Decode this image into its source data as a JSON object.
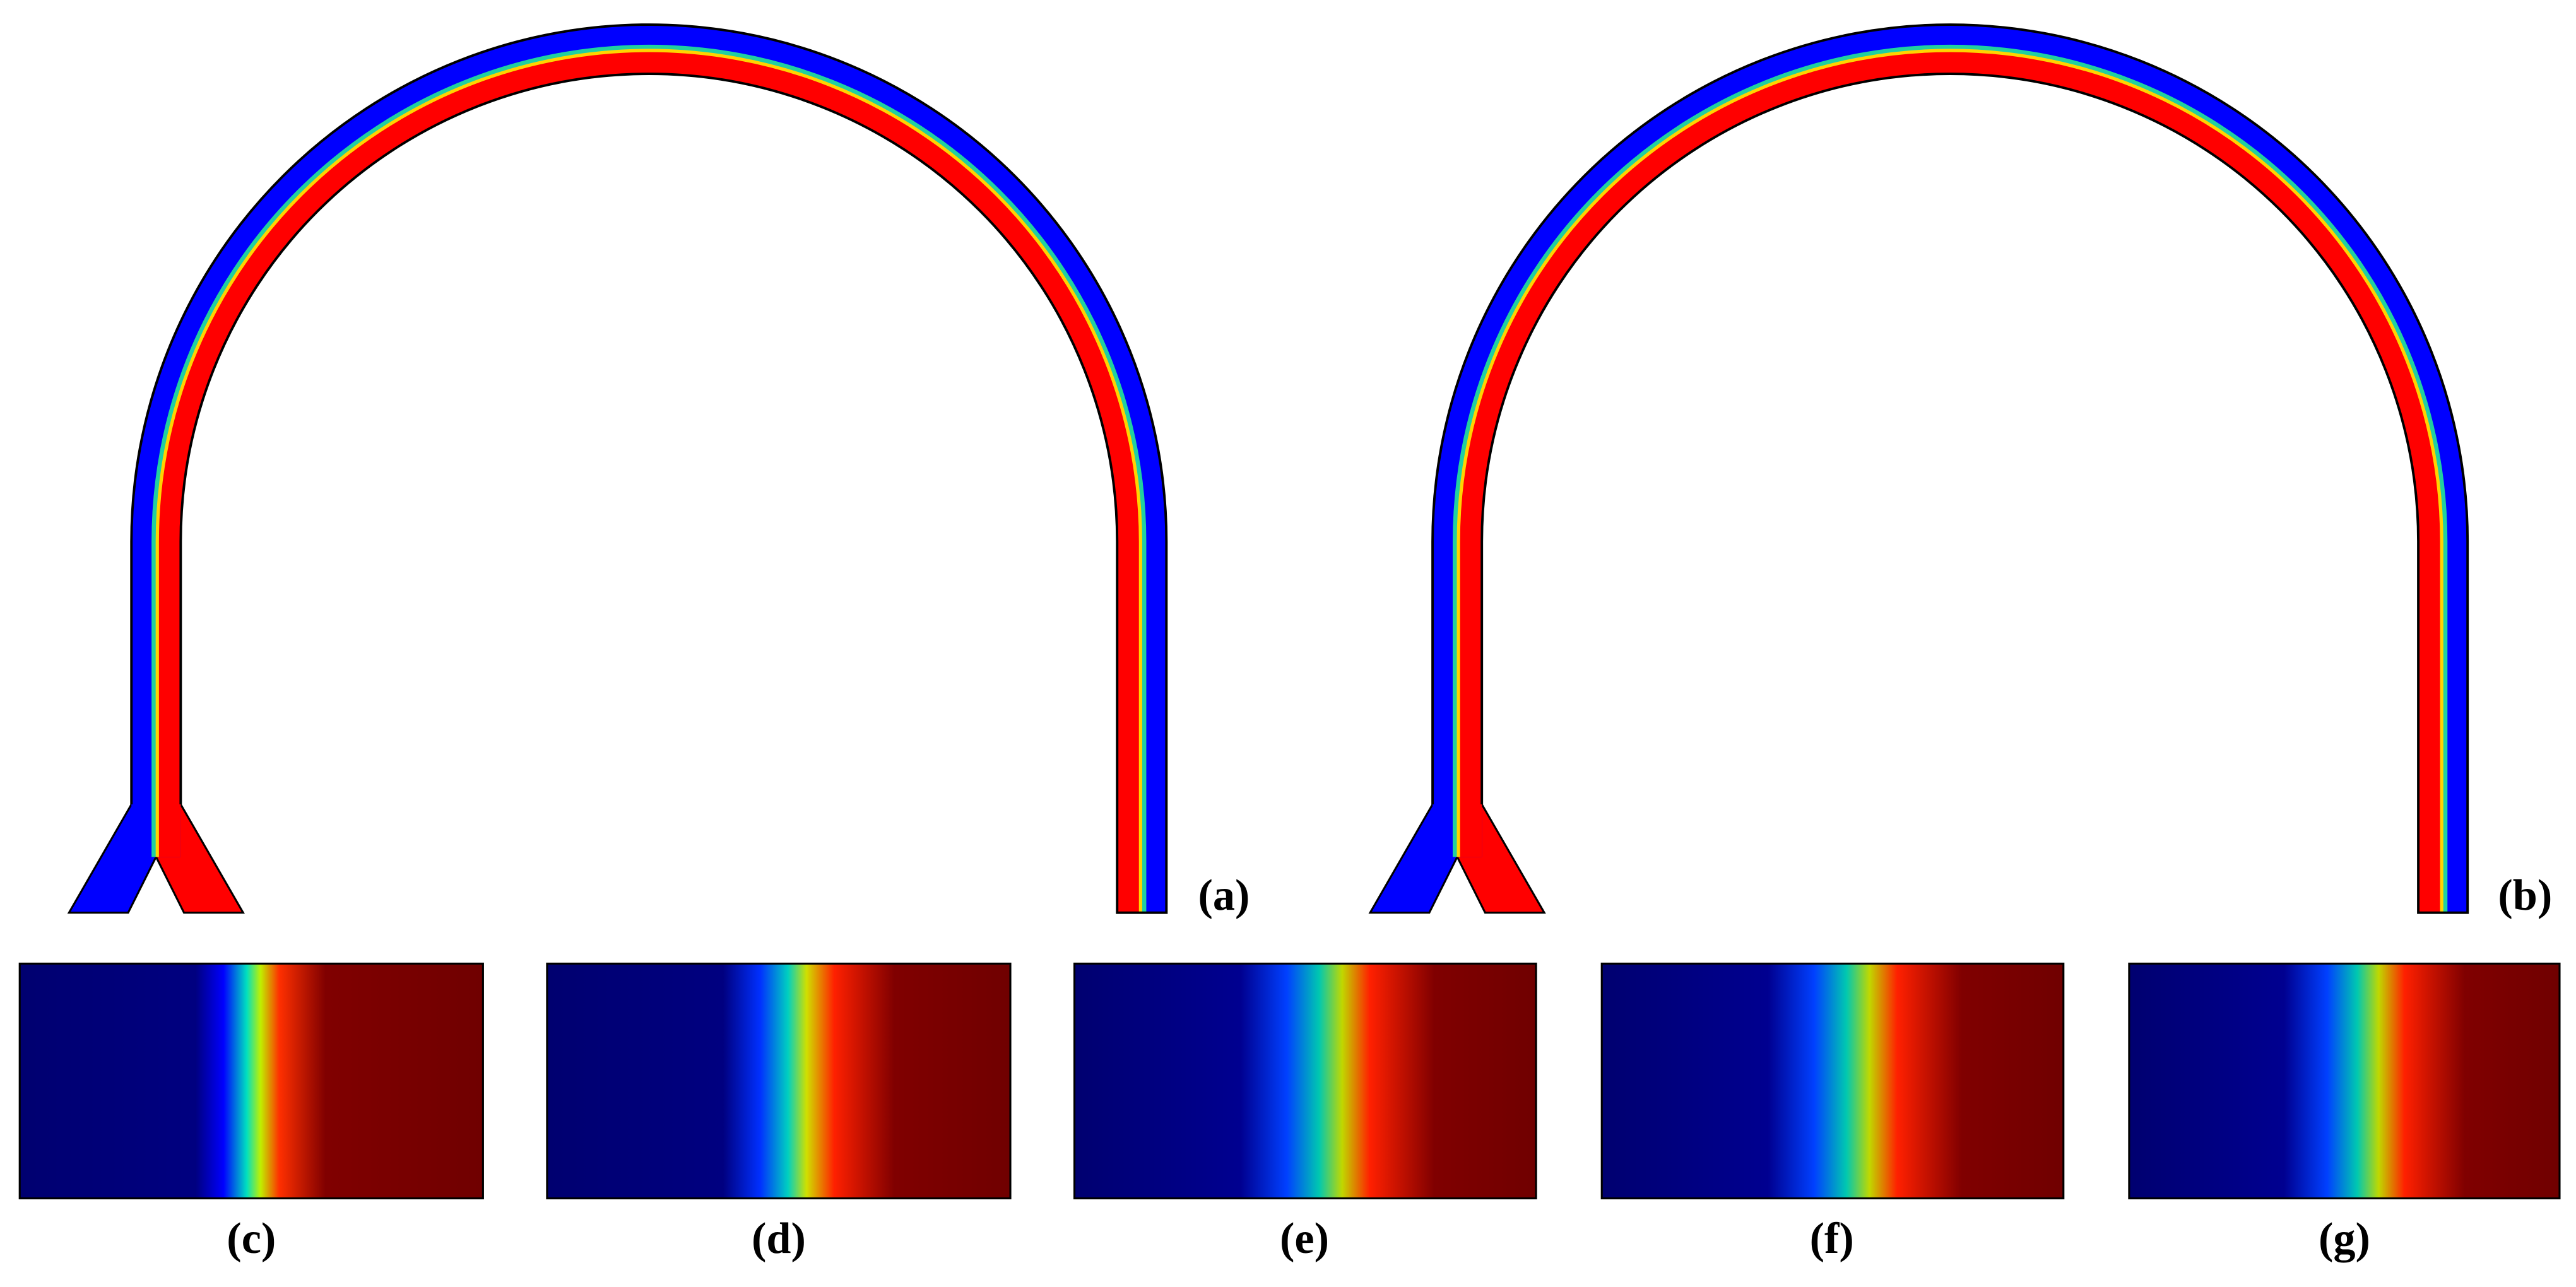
{
  "panels": {
    "a": "(a)",
    "b": "(b)",
    "c": "(c)",
    "d": "(d)",
    "e": "(e)",
    "f": "(f)",
    "g": "(g)"
  }
}
